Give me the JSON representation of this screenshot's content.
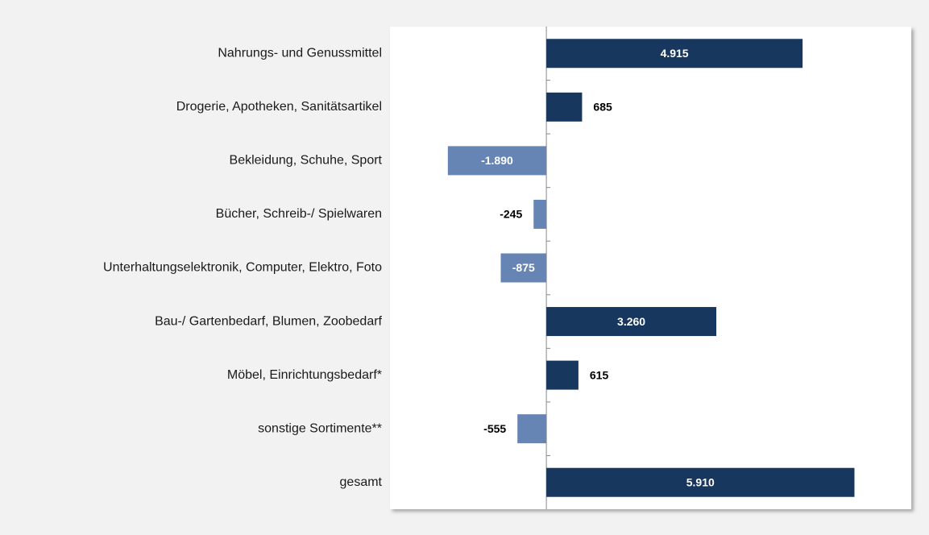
{
  "chart_data": {
    "type": "barh",
    "categories": [
      "Nahrungs- und Genussmittel",
      "Drogerie, Apotheken, Sanitätsartikel",
      "Bekleidung, Schuhe, Sport",
      "Bücher, Schreib-/ Spielwaren",
      "Unterhaltungselektronik, Computer, Elektro, Foto",
      "Bau-/ Gartenbedarf, Blumen, Zoobedarf",
      "Möbel, Einrichtungsbedarf*",
      "sonstige Sortimente**",
      "gesamt"
    ],
    "values": [
      4915,
      685,
      -1890,
      -245,
      -875,
      3260,
      615,
      -555,
      5910
    ],
    "value_labels": [
      "4.915",
      "685",
      "-1.890",
      "-245",
      "-875",
      "3.260",
      "615",
      "-555",
      "5.910"
    ],
    "positive_color": "#17375e",
    "negative_color": "#6785b4",
    "xlim": [
      -3000,
      7000
    ]
  }
}
